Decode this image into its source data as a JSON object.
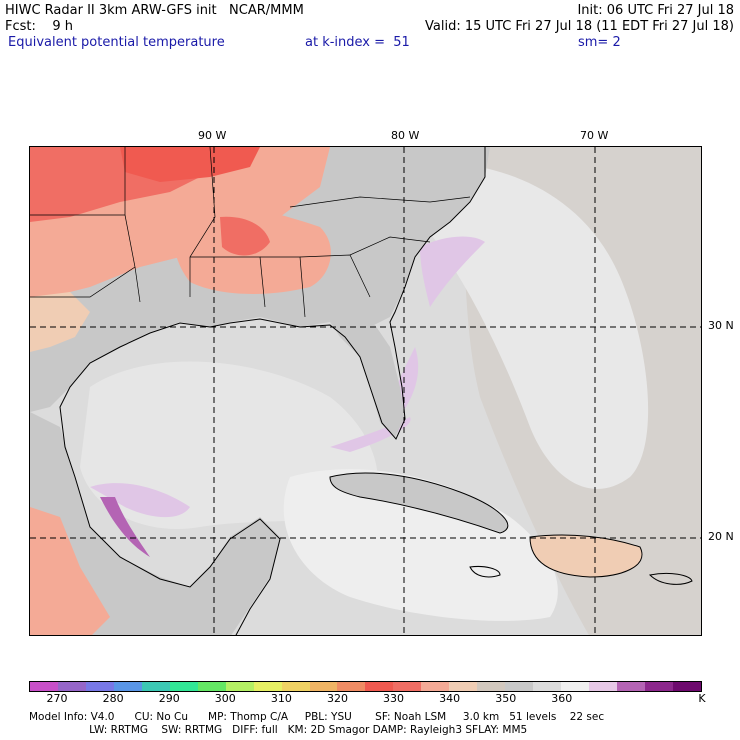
{
  "header": {
    "line1_left": "HIWC Radar II 3km ARW-GFS init   NCAR/MMM",
    "line1_right": "Init: 06 UTC Fri 27 Jul 18",
    "line2_left": "Fcst:    9 h",
    "line2_right": "Valid: 15 UTC Fri 27 Jul 18 (11 EDT Fri 27 Jul 18)",
    "field": "Equivalent potential temperature",
    "level": "at k-index =  51",
    "smooth": "sm= 2"
  },
  "map": {
    "lon_labels": [
      "90 W",
      "80 W",
      "70 W"
    ],
    "lat_labels": [
      "30 N",
      "20 N"
    ]
  },
  "colorbar": {
    "colors": [
      "#c850c8",
      "#9666c8",
      "#7878e6",
      "#5a96e6",
      "#3cc8b4",
      "#32e696",
      "#64e664",
      "#b4f064",
      "#e6f064",
      "#f0d264",
      "#f0b464",
      "#f08c64",
      "#f05a50",
      "#f06e64",
      "#f4aa96",
      "#f0cdb4",
      "#d2c8be",
      "#c8c8c8",
      "#dcdcdc",
      "#f0f0f0",
      "#e6c8e6",
      "#b464b4",
      "#8c288c",
      "#6e0a6e"
    ],
    "labels": [
      "270",
      "280",
      "290",
      "300",
      "310",
      "320",
      "330",
      "340",
      "350",
      "360",
      "K"
    ]
  },
  "footer": {
    "line1": "Model Info: V4.0      CU: No Cu      MP: Thomp C/A     PBL: YSU       SF: Noah LSM     3.0 km   51 levels    22 sec",
    "line2": "                  LW: RRTMG    SW: RRTMG   DIFF: full   KM: 2D Smagor DAMP: Rayleigh3 SFLAY: MM5"
  }
}
